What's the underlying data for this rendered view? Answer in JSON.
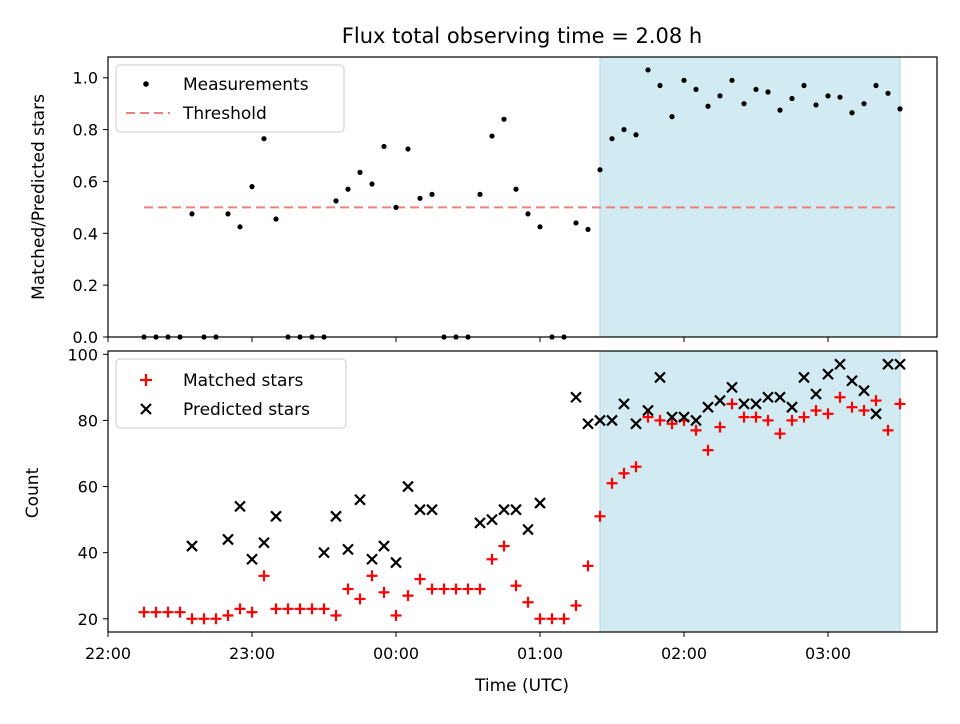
{
  "chart_data": [
    {
      "type": "scatter",
      "title": "Flux total observing time = 2.08 h",
      "ylabel": "Matched/Predicted stars",
      "xlabel": "",
      "ylim": [
        0,
        1.08
      ],
      "yticks": [
        "0.0",
        "0.2",
        "0.4",
        "0.6",
        "0.8",
        "1.0"
      ],
      "ytick_values": [
        0,
        0.2,
        0.4,
        0.6,
        0.8,
        1.0
      ],
      "legend": [
        "Measurements",
        "Threshold"
      ],
      "legend_position": "upper-left",
      "threshold": {
        "value": 0.5,
        "from": "22:15",
        "to": "03:30",
        "color": "#f08080"
      },
      "shaded_region": {
        "from": "01:25",
        "to": "03:30",
        "color": "#add8e6"
      },
      "series": [
        {
          "name": "Measurements",
          "color": "#000000",
          "x": [
            "22:15",
            "22:20",
            "22:25",
            "22:30",
            "22:35",
            "22:40",
            "22:45",
            "22:50",
            "22:55",
            "23:00",
            "23:05",
            "23:10",
            "23:15",
            "23:20",
            "23:25",
            "23:30",
            "23:35",
            "23:40",
            "23:45",
            "23:50",
            "23:55",
            "00:00",
            "00:05",
            "00:10",
            "00:15",
            "00:20",
            "00:25",
            "00:30",
            "00:35",
            "00:40",
            "00:45",
            "00:50",
            "00:55",
            "01:00",
            "01:05",
            "01:10",
            "01:15",
            "01:20",
            "01:25",
            "01:30",
            "01:35",
            "01:40",
            "01:45",
            "01:50",
            "01:55",
            "02:00",
            "02:05",
            "02:10",
            "02:15",
            "02:20",
            "02:25",
            "02:30",
            "02:35",
            "02:40",
            "02:45",
            "02:50",
            "02:55",
            "03:00",
            "03:05",
            "03:10",
            "03:15",
            "03:20",
            "03:25",
            "03:30"
          ],
          "y": [
            0,
            0,
            0,
            0,
            0.475,
            0,
            0,
            0.475,
            0.425,
            0.58,
            0.765,
            0.455,
            0,
            0,
            0,
            0,
            0.525,
            0.57,
            0.635,
            0.59,
            0.735,
            0.5,
            0.725,
            0.535,
            0.55,
            0,
            0,
            0,
            0.55,
            0.775,
            0.84,
            0.57,
            0.475,
            0.425,
            0,
            0,
            0.44,
            0.415,
            0.645,
            0.765,
            0.8,
            0.78,
            1.03,
            0.97,
            0.85,
            0.99,
            0.955,
            0.89,
            0.93,
            0.99,
            0.9,
            0.955,
            0.945,
            0.875,
            0.92,
            0.97,
            0.895,
            0.93,
            0.925,
            0.865,
            0.9,
            0.97,
            0.94,
            0.88
          ]
        }
      ]
    },
    {
      "type": "scatter",
      "xlabel": "Time (UTC)",
      "ylabel": "Count",
      "ylim": [
        16,
        101
      ],
      "yticks": [
        "20",
        "40",
        "60",
        "80",
        "100"
      ],
      "ytick_values": [
        20,
        40,
        60,
        80,
        100
      ],
      "xticks": [
        "22:00",
        "23:00",
        "00:00",
        "01:00",
        "02:00",
        "03:00"
      ],
      "legend": [
        "Matched stars",
        "Predicted stars"
      ],
      "legend_position": "upper-left",
      "shaded_region": {
        "from": "01:25",
        "to": "03:30",
        "color": "#add8e6"
      },
      "series": [
        {
          "name": "Matched stars",
          "marker": "plus",
          "color": "#ff0000",
          "x": [
            "22:15",
            "22:20",
            "22:25",
            "22:30",
            "22:35",
            "22:40",
            "22:45",
            "22:50",
            "22:55",
            "23:00",
            "23:05",
            "23:10",
            "23:15",
            "23:20",
            "23:25",
            "23:30",
            "23:35",
            "23:40",
            "23:45",
            "23:50",
            "23:55",
            "00:00",
            "00:05",
            "00:10",
            "00:15",
            "00:20",
            "00:25",
            "00:30",
            "00:35",
            "00:40",
            "00:45",
            "00:50",
            "00:55",
            "01:00",
            "01:05",
            "01:10",
            "01:15",
            "01:20",
            "01:25",
            "01:30",
            "01:35",
            "01:40",
            "01:45",
            "01:50",
            "01:55",
            "02:00",
            "02:05",
            "02:10",
            "02:15",
            "02:20",
            "02:25",
            "02:30",
            "02:35",
            "02:40",
            "02:45",
            "02:50",
            "02:55",
            "03:00",
            "03:05",
            "03:10",
            "03:15",
            "03:20",
            "03:25",
            "03:30"
          ],
          "y": [
            22,
            22,
            22,
            22,
            20,
            20,
            20,
            21,
            23,
            22,
            33,
            23,
            23,
            23,
            23,
            23,
            21,
            29,
            26,
            33,
            28,
            21,
            27,
            32,
            29,
            29,
            29,
            29,
            29,
            38,
            42,
            30,
            25,
            20,
            20,
            20,
            24,
            36,
            51,
            61,
            64,
            66,
            81,
            80,
            79,
            80,
            77,
            71,
            78,
            85,
            81,
            81,
            80,
            76,
            80,
            81,
            83,
            82,
            87,
            84,
            83,
            86,
            77,
            85
          ]
        },
        {
          "name": "Predicted stars",
          "marker": "x",
          "color": "#000000",
          "x": [
            "22:35",
            "22:50",
            "22:55",
            "23:00",
            "23:05",
            "23:10",
            "23:30",
            "23:35",
            "23:40",
            "23:45",
            "23:50",
            "23:55",
            "00:00",
            "00:05",
            "00:10",
            "00:15",
            "00:35",
            "00:40",
            "00:45",
            "00:50",
            "00:55",
            "01:00",
            "01:15",
            "01:20",
            "01:25",
            "01:30",
            "01:35",
            "01:40",
            "01:45",
            "01:50",
            "01:55",
            "02:00",
            "02:05",
            "02:10",
            "02:15",
            "02:20",
            "02:25",
            "02:30",
            "02:35",
            "02:40",
            "02:45",
            "02:50",
            "02:55",
            "03:00",
            "03:05",
            "03:10",
            "03:15",
            "03:20",
            "03:25",
            "03:30"
          ],
          "y": [
            42,
            44,
            54,
            38,
            43,
            51,
            40,
            51,
            41,
            56,
            38,
            42,
            37,
            60,
            53,
            53,
            49,
            50,
            53,
            53,
            47,
            55,
            87,
            79,
            80,
            80,
            85,
            79,
            83,
            93,
            81,
            81,
            80,
            84,
            86,
            90,
            85,
            85,
            87,
            87,
            84,
            93,
            88,
            94,
            97,
            92,
            89,
            82,
            97,
            97
          ]
        }
      ]
    }
  ]
}
